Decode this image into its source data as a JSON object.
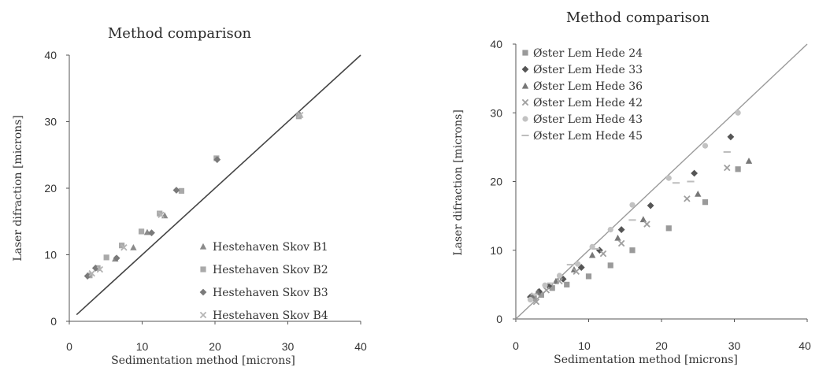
{
  "chart_data": [
    {
      "type": "scatter",
      "title": "Method comparison",
      "xlabel": "Sedimentation method [microns]",
      "ylabel": "Laser difraction [microns]",
      "xlim": [
        0,
        40
      ],
      "ylim": [
        0,
        40
      ],
      "xticks": [
        "0",
        "10",
        "20",
        "30",
        "40"
      ],
      "yticks": [
        "0",
        "10",
        "20",
        "30",
        "40"
      ],
      "legend_position": "bottom-right",
      "reference_line": {
        "x": [
          1,
          40
        ],
        "y": [
          1,
          40
        ]
      },
      "series": [
        {
          "name": "Hestehaven Skov B1",
          "marker": "triangle",
          "color": "#8a8a8a",
          "points": [
            [
              8.8,
              11.1
            ],
            [
              10.7,
              13.4
            ],
            [
              13.1,
              15.9
            ],
            [
              6.3,
              9.4
            ],
            [
              31.6,
              31.2
            ]
          ]
        },
        {
          "name": "Hestehaven Skov B2",
          "marker": "square",
          "color": "#a9a9a9",
          "points": [
            [
              2.8,
              6.9
            ],
            [
              3.9,
              8.0
            ],
            [
              5.1,
              9.6
            ],
            [
              7.2,
              11.4
            ],
            [
              9.9,
              13.5
            ],
            [
              12.4,
              16.2
            ],
            [
              15.4,
              19.6
            ],
            [
              20.2,
              24.5
            ],
            [
              31.5,
              30.8
            ]
          ]
        },
        {
          "name": "Hestehaven Skov B3",
          "marker": "diamond",
          "color": "#7a7a7a",
          "points": [
            [
              2.5,
              6.8
            ],
            [
              3.6,
              8.0
            ],
            [
              6.5,
              9.5
            ],
            [
              11.3,
              13.3
            ],
            [
              14.7,
              19.7
            ],
            [
              20.3,
              24.3
            ]
          ]
        },
        {
          "name": "Hestehaven Skov B4",
          "marker": "cross",
          "color": "#b5b5b5",
          "points": [
            [
              3.1,
              7.2
            ],
            [
              4.2,
              7.8
            ],
            [
              7.5,
              11.1
            ],
            [
              12.6,
              16.0
            ],
            [
              31.7,
              31.0
            ]
          ]
        }
      ]
    },
    {
      "type": "scatter",
      "title": "Method comparison",
      "xlabel": "Sedimentation method [microns]",
      "ylabel": "Laser difraction [microns]",
      "xlim": [
        0,
        40
      ],
      "ylim": [
        0,
        40
      ],
      "xticks": [
        "0",
        "10",
        "20",
        "30",
        "40"
      ],
      "yticks": [
        "0",
        "10",
        "20",
        "30",
        "40"
      ],
      "legend_position": "top-left",
      "reference_line": {
        "x": [
          0,
          40
        ],
        "y": [
          0,
          40
        ]
      },
      "series": [
        {
          "name": "Øster Lem Hede 24",
          "marker": "square",
          "color": "#9a9a9a",
          "points": [
            [
              2.5,
              3.0
            ],
            [
              3.5,
              3.5
            ],
            [
              5.0,
              4.5
            ],
            [
              7.0,
              5.0
            ],
            [
              10.0,
              6.2
            ],
            [
              13.0,
              7.8
            ],
            [
              16.0,
              10.0
            ],
            [
              21.0,
              13.2
            ],
            [
              26.0,
              17.0
            ],
            [
              30.5,
              21.8
            ]
          ]
        },
        {
          "name": "Øster Lem Hede 33",
          "marker": "diamond",
          "color": "#555555",
          "points": [
            [
              2.0,
              3.2
            ],
            [
              3.2,
              4.0
            ],
            [
              4.5,
              4.8
            ],
            [
              6.5,
              5.8
            ],
            [
              9.0,
              7.5
            ],
            [
              11.5,
              10.0
            ],
            [
              14.5,
              13.0
            ],
            [
              18.5,
              16.5
            ],
            [
              24.5,
              21.2
            ],
            [
              29.5,
              26.5
            ]
          ]
        },
        {
          "name": "Øster Lem Hede 36",
          "marker": "triangle",
          "color": "#777777",
          "points": [
            [
              2.2,
              3.4
            ],
            [
              3.0,
              3.9
            ],
            [
              5.5,
              5.5
            ],
            [
              8.0,
              7.2
            ],
            [
              10.5,
              9.3
            ],
            [
              14.0,
              11.8
            ],
            [
              17.5,
              14.5
            ],
            [
              25.0,
              18.2
            ],
            [
              32.0,
              23.0
            ]
          ]
        },
        {
          "name": "Øster Lem Hede 42",
          "marker": "cross",
          "color": "#9f9f9f",
          "points": [
            [
              2.8,
              2.5
            ],
            [
              4.2,
              4.2
            ],
            [
              6.0,
              5.5
            ],
            [
              8.3,
              6.9
            ],
            [
              12.0,
              9.5
            ],
            [
              14.5,
              11.0
            ],
            [
              18.0,
              13.8
            ],
            [
              23.5,
              17.5
            ],
            [
              29.0,
              22.0
            ]
          ]
        },
        {
          "name": "Øster Lem Hede 43",
          "marker": "circle",
          "color": "#c2c2c2",
          "points": [
            [
              2.0,
              2.8
            ],
            [
              4.0,
              4.9
            ],
            [
              6.0,
              6.3
            ],
            [
              8.5,
              8.0
            ],
            [
              10.5,
              10.5
            ],
            [
              13.0,
              13.0
            ],
            [
              16.0,
              16.6
            ],
            [
              21.0,
              20.5
            ],
            [
              26.0,
              25.2
            ],
            [
              30.5,
              30.0
            ]
          ]
        },
        {
          "name": "Øster Lem Hede 45",
          "marker": "dash",
          "color": "#bdbdbd",
          "points": [
            [
              2.5,
              3.6
            ],
            [
              4.8,
              5.2
            ],
            [
              7.5,
              7.9
            ],
            [
              11.0,
              10.2
            ],
            [
              16.0,
              14.4
            ],
            [
              22.0,
              19.8
            ],
            [
              24.0,
              20.0
            ],
            [
              29.0,
              24.3
            ]
          ]
        }
      ]
    }
  ]
}
